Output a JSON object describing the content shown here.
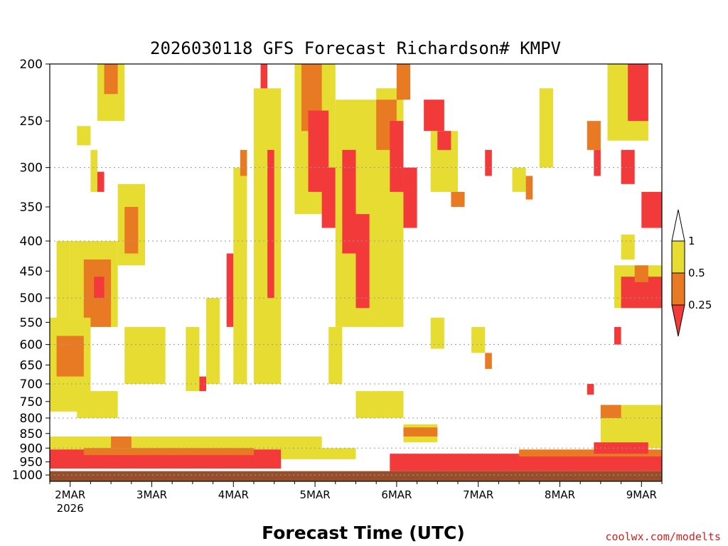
{
  "chart_data": {
    "type": "heatmap",
    "title": "2026030118 GFS Forecast Richardson# KMPV",
    "xlabel": "Forecast Time (UTC)",
    "ylabel": "",
    "x_ticks": [
      {
        "label": "2MAR",
        "hour": 6,
        "sublabel": "2026"
      },
      {
        "label": "3MAR",
        "hour": 30,
        "sublabel": ""
      },
      {
        "label": "4MAR",
        "hour": 54,
        "sublabel": ""
      },
      {
        "label": "5MAR",
        "hour": 78,
        "sublabel": ""
      },
      {
        "label": "6MAR",
        "hour": 102,
        "sublabel": ""
      },
      {
        "label": "7MAR",
        "hour": 126,
        "sublabel": ""
      },
      {
        "label": "8MAR",
        "hour": 150,
        "sublabel": ""
      },
      {
        "label": "9MAR",
        "hour": 174,
        "sublabel": ""
      }
    ],
    "xlim_hours": [
      0,
      180
    ],
    "y_levels_hpa": [
      200,
      250,
      300,
      350,
      400,
      450,
      500,
      550,
      600,
      650,
      700,
      750,
      800,
      850,
      900,
      950,
      1000
    ],
    "ylim_hpa": [
      1025,
      200
    ],
    "y_scale": "log",
    "gridlines_hpa": [
      300,
      400,
      500,
      600,
      700,
      800,
      900,
      1000
    ],
    "legend": {
      "placement": "right",
      "labels": [
        "1",
        "0.5",
        "0.25"
      ],
      "bins": [
        {
          "range": "0.5-1",
          "color": "#e6dc32"
        },
        {
          "range": "0.25-0.5",
          "color": "#e87a24"
        },
        {
          "range": "<0.25",
          "color": "#f23a3a"
        }
      ]
    },
    "colors": {
      "yellow": "#e6dc32",
      "orange": "#e87a24",
      "red": "#f23a3a",
      "ground": "#964f2a"
    },
    "regions": [
      {
        "bin": "yellow",
        "t": [
          14,
          22
        ],
        "p": [
          200,
          250
        ]
      },
      {
        "bin": "orange",
        "t": [
          16,
          20
        ],
        "p": [
          200,
          225
        ]
      },
      {
        "bin": "yellow",
        "t": [
          8,
          12
        ],
        "p": [
          255,
          275
        ]
      },
      {
        "bin": "yellow",
        "t": [
          12,
          14
        ],
        "p": [
          280,
          330
        ]
      },
      {
        "bin": "red",
        "t": [
          14,
          16
        ],
        "p": [
          305,
          330
        ]
      },
      {
        "bin": "yellow",
        "t": [
          20,
          28
        ],
        "p": [
          320,
          440
        ]
      },
      {
        "bin": "orange",
        "t": [
          22,
          26
        ],
        "p": [
          350,
          420
        ]
      },
      {
        "bin": "yellow",
        "t": [
          2,
          6
        ],
        "p": [
          400,
          700
        ]
      },
      {
        "bin": "yellow",
        "t": [
          6,
          20
        ],
        "p": [
          400,
          560
        ]
      },
      {
        "bin": "orange",
        "t": [
          10,
          18
        ],
        "p": [
          430,
          560
        ]
      },
      {
        "bin": "red",
        "t": [
          13,
          16
        ],
        "p": [
          460,
          500
        ]
      },
      {
        "bin": "yellow",
        "t": [
          0,
          12
        ],
        "p": [
          540,
          780
        ]
      },
      {
        "bin": "orange",
        "t": [
          2,
          10
        ],
        "p": [
          580,
          680
        ]
      },
      {
        "bin": "yellow",
        "t": [
          8,
          20
        ],
        "p": [
          720,
          800
        ]
      },
      {
        "bin": "yellow",
        "t": [
          22,
          34
        ],
        "p": [
          560,
          700
        ]
      },
      {
        "bin": "yellow",
        "t": [
          28,
          32
        ],
        "p": [
          600,
          680
        ]
      },
      {
        "bin": "yellow",
        "t": [
          40,
          44
        ],
        "p": [
          560,
          720
        ]
      },
      {
        "bin": "red",
        "t": [
          44,
          46
        ],
        "p": [
          680,
          720
        ]
      },
      {
        "bin": "yellow",
        "t": [
          46,
          50
        ],
        "p": [
          500,
          700
        ]
      },
      {
        "bin": "red",
        "t": [
          52,
          54
        ],
        "p": [
          420,
          560
        ]
      },
      {
        "bin": "yellow",
        "t": [
          54,
          58
        ],
        "p": [
          300,
          700
        ]
      },
      {
        "bin": "orange",
        "t": [
          56,
          58
        ],
        "p": [
          280,
          310
        ]
      },
      {
        "bin": "red",
        "t": [
          62,
          64
        ],
        "p": [
          200,
          300
        ]
      },
      {
        "bin": "yellow",
        "t": [
          60,
          68
        ],
        "p": [
          220,
          700
        ]
      },
      {
        "bin": "red",
        "t": [
          64,
          66
        ],
        "p": [
          280,
          500
        ]
      },
      {
        "bin": "yellow",
        "t": [
          72,
          84
        ],
        "p": [
          200,
          360
        ]
      },
      {
        "bin": "orange",
        "t": [
          74,
          80
        ],
        "p": [
          200,
          260
        ]
      },
      {
        "bin": "red",
        "t": [
          76,
          82
        ],
        "p": [
          240,
          330
        ]
      },
      {
        "bin": "red",
        "t": [
          80,
          84
        ],
        "p": [
          300,
          380
        ]
      },
      {
        "bin": "yellow",
        "t": [
          84,
          98
        ],
        "p": [
          230,
          560
        ]
      },
      {
        "bin": "red",
        "t": [
          86,
          90
        ],
        "p": [
          280,
          420
        ]
      },
      {
        "bin": "red",
        "t": [
          90,
          94
        ],
        "p": [
          360,
          520
        ]
      },
      {
        "bin": "yellow",
        "t": [
          96,
          104
        ],
        "p": [
          220,
          560
        ]
      },
      {
        "bin": "orange",
        "t": [
          96,
          102
        ],
        "p": [
          230,
          280
        ]
      },
      {
        "bin": "red",
        "t": [
          100,
          104
        ],
        "p": [
          250,
          330
        ]
      },
      {
        "bin": "orange",
        "t": [
          102,
          106
        ],
        "p": [
          200,
          230
        ]
      },
      {
        "bin": "red",
        "t": [
          104,
          108
        ],
        "p": [
          300,
          380
        ]
      },
      {
        "bin": "red",
        "t": [
          110,
          116
        ],
        "p": [
          230,
          260
        ]
      },
      {
        "bin": "yellow",
        "t": [
          112,
          120
        ],
        "p": [
          260,
          330
        ]
      },
      {
        "bin": "red",
        "t": [
          114,
          118
        ],
        "p": [
          260,
          280
        ]
      },
      {
        "bin": "yellow",
        "t": [
          112,
          116
        ],
        "p": [
          540,
          610
        ]
      },
      {
        "bin": "orange",
        "t": [
          118,
          122
        ],
        "p": [
          330,
          350
        ]
      },
      {
        "bin": "red",
        "t": [
          128,
          130
        ],
        "p": [
          280,
          310
        ]
      },
      {
        "bin": "yellow",
        "t": [
          136,
          140
        ],
        "p": [
          300,
          330
        ]
      },
      {
        "bin": "orange",
        "t": [
          140,
          142
        ],
        "p": [
          310,
          340
        ]
      },
      {
        "bin": "yellow",
        "t": [
          144,
          148
        ],
        "p": [
          220,
          300
        ]
      },
      {
        "bin": "orange",
        "t": [
          158,
          162
        ],
        "p": [
          250,
          280
        ]
      },
      {
        "bin": "red",
        "t": [
          160,
          162
        ],
        "p": [
          280,
          310
        ]
      },
      {
        "bin": "yellow",
        "t": [
          164,
          176
        ],
        "p": [
          200,
          270
        ]
      },
      {
        "bin": "red",
        "t": [
          170,
          176
        ],
        "p": [
          200,
          250
        ]
      },
      {
        "bin": "red",
        "t": [
          168,
          172
        ],
        "p": [
          280,
          320
        ]
      },
      {
        "bin": "red",
        "t": [
          174,
          180
        ],
        "p": [
          330,
          380
        ]
      },
      {
        "bin": "yellow",
        "t": [
          168,
          172
        ],
        "p": [
          390,
          430
        ]
      },
      {
        "bin": "yellow",
        "t": [
          166,
          180
        ],
        "p": [
          440,
          520
        ]
      },
      {
        "bin": "red",
        "t": [
          168,
          180
        ],
        "p": [
          460,
          520
        ]
      },
      {
        "bin": "orange",
        "t": [
          172,
          176
        ],
        "p": [
          440,
          470
        ]
      },
      {
        "bin": "red",
        "t": [
          166,
          168
        ],
        "p": [
          560,
          600
        ]
      },
      {
        "bin": "yellow",
        "t": [
          124,
          128
        ],
        "p": [
          560,
          620
        ]
      },
      {
        "bin": "orange",
        "t": [
          128,
          130
        ],
        "p": [
          620,
          660
        ]
      },
      {
        "bin": "yellow",
        "t": [
          82,
          86
        ],
        "p": [
          560,
          700
        ]
      },
      {
        "bin": "yellow",
        "t": [
          90,
          104
        ],
        "p": [
          720,
          800
        ]
      },
      {
        "bin": "yellow",
        "t": [
          104,
          114
        ],
        "p": [
          820,
          880
        ]
      },
      {
        "bin": "orange",
        "t": [
          104,
          114
        ],
        "p": [
          830,
          860
        ]
      },
      {
        "bin": "red",
        "t": [
          158,
          160
        ],
        "p": [
          700,
          730
        ]
      },
      {
        "bin": "yellow",
        "t": [
          162,
          180
        ],
        "p": [
          760,
          900
        ]
      },
      {
        "bin": "orange",
        "t": [
          162,
          168
        ],
        "p": [
          760,
          800
        ]
      },
      {
        "bin": "yellow",
        "t": [
          0,
          80
        ],
        "p": [
          860,
          910
        ]
      },
      {
        "bin": "orange",
        "t": [
          18,
          24
        ],
        "p": [
          860,
          900
        ]
      },
      {
        "bin": "red",
        "t": [
          0,
          68
        ],
        "p": [
          905,
          975
        ]
      },
      {
        "bin": "orange",
        "t": [
          10,
          60
        ],
        "p": [
          900,
          925
        ]
      },
      {
        "bin": "yellow",
        "t": [
          68,
          90
        ],
        "p": [
          900,
          940
        ]
      },
      {
        "bin": "red",
        "t": [
          100,
          180
        ],
        "p": [
          920,
          985
        ]
      },
      {
        "bin": "orange",
        "t": [
          138,
          180
        ],
        "p": [
          905,
          930
        ]
      },
      {
        "bin": "red",
        "t": [
          160,
          176
        ],
        "p": [
          880,
          920
        ]
      }
    ]
  },
  "credit": "coolwx.com/modelts"
}
